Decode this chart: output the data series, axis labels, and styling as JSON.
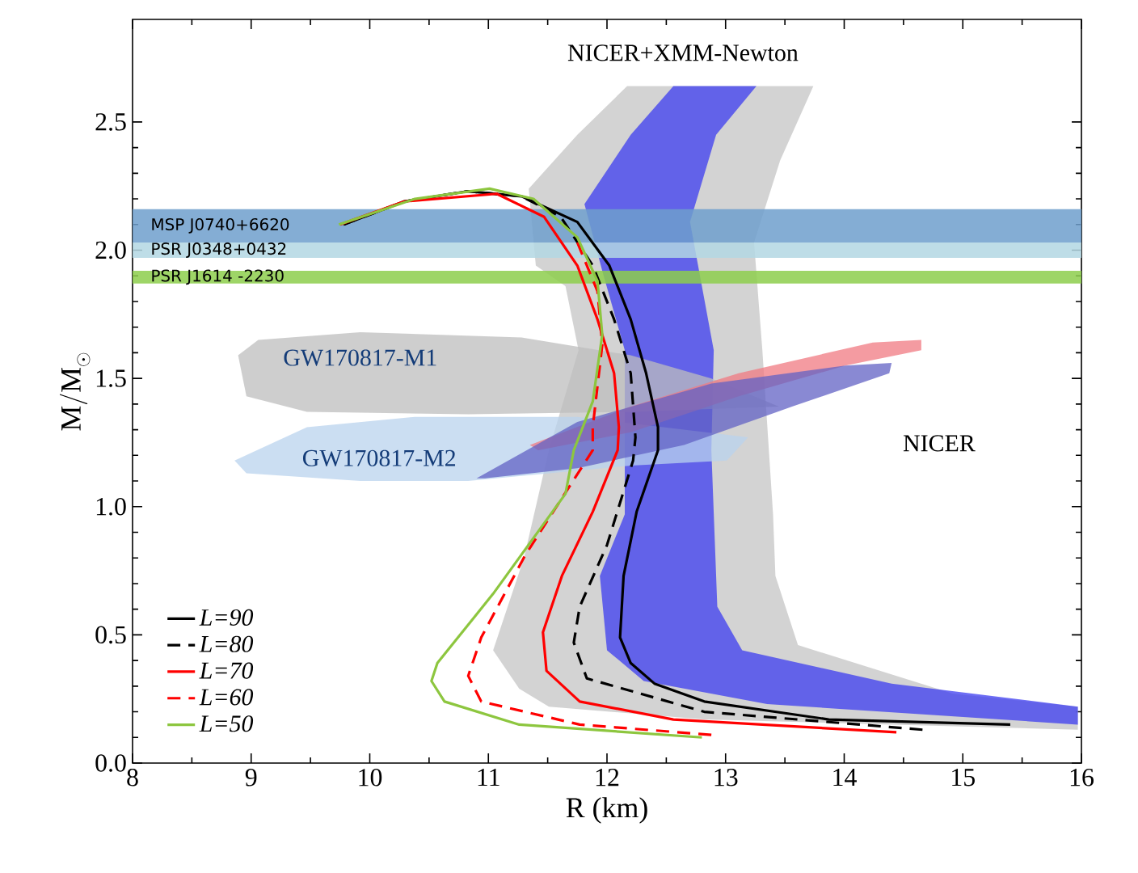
{
  "chart_data": {
    "type": "line",
    "xlabel": "R (km)",
    "ylabel": "\\mathrm{M/M}_{\\odot}",
    "xlim": [
      8,
      16
    ],
    "ylim": [
      0,
      2.9
    ],
    "xticks": [
      8,
      9,
      10,
      11,
      12,
      13,
      14,
      15,
      16
    ],
    "yticks": [
      {
        "value": 0,
        "label": "0.0"
      },
      {
        "value": 0.5,
        "label": "0.5"
      },
      {
        "value": 1,
        "label": "1.0"
      },
      {
        "value": 1.5,
        "label": "1.5"
      },
      {
        "value": 2,
        "label": "2.0"
      },
      {
        "value": 2.5,
        "label": "2.5"
      }
    ],
    "legend": "bottom left",
    "grid": false,
    "series": [
      {
        "type": "area",
        "color": "#c4c4c4",
        "x": [
          12.17,
          11.75,
          11.34,
          11.4,
          11.65,
          11.76,
          11.51,
          11.3,
          11.04,
          11.26,
          11.51,
          12.82,
          15.97,
          15.97,
          14.92,
          13.61,
          13.42,
          13.4,
          13.31,
          13.24,
          13.46,
          13.74
        ],
        "values": [
          2.64,
          2.45,
          2.24,
          1.94,
          1.86,
          1.61,
          1.22,
          0.8,
          0.44,
          0.29,
          0.22,
          0.17,
          0.13,
          0.22,
          0.27,
          0.46,
          0.73,
          0.97,
          1.61,
          2.03,
          2.35,
          2.64
        ]
      },
      {
        "type": "area",
        "color": "#3c3cf0",
        "x": [
          12.56,
          12.2,
          11.81,
          11.96,
          12.15,
          12.15,
          11.94,
          12.0,
          12.31,
          13.35,
          15.97,
          15.97,
          14.4,
          13.14,
          12.93,
          12.88,
          12.9,
          12.7,
          12.92,
          13.26
        ],
        "values": [
          2.64,
          2.45,
          2.18,
          1.92,
          1.61,
          0.97,
          0.73,
          0.44,
          0.32,
          0.23,
          0.15,
          0.22,
          0.31,
          0.44,
          0.61,
          1.22,
          1.61,
          2.11,
          2.45,
          2.64
        ]
      },
      {
        "type": "area",
        "color": "#bdbdbd",
        "x": [
          8.89,
          9.06,
          9.92,
          11.28,
          12.2,
          12.88,
          13.45,
          12.2,
          10.83,
          9.47,
          8.96
        ],
        "values": [
          1.59,
          1.65,
          1.68,
          1.66,
          1.59,
          1.5,
          1.39,
          1.37,
          1.36,
          1.37,
          1.43
        ]
      },
      {
        "type": "area",
        "color": "#b9d3ee",
        "x": [
          8.86,
          9.47,
          10.38,
          11.75,
          13.19,
          13.01,
          12.2,
          10.83,
          9.92,
          8.96
        ],
        "values": [
          1.18,
          1.31,
          1.35,
          1.35,
          1.27,
          1.18,
          1.16,
          1.1,
          1.1,
          1.13
        ]
      },
      {
        "type": "area",
        "color": "#f07a82",
        "x": [
          11.35,
          12.2,
          13.11,
          14.24,
          14.65,
          14.65,
          14.01,
          13.11,
          12.2,
          11.42
        ],
        "values": [
          1.24,
          1.39,
          1.52,
          1.64,
          1.65,
          1.61,
          1.55,
          1.43,
          1.29,
          1.22
        ]
      },
      {
        "type": "area",
        "color": "#6262c4",
        "x": [
          10.9,
          11.75,
          12.88,
          14.01,
          14.4,
          14.38,
          13.56,
          12.65,
          11.75,
          10.97
        ],
        "values": [
          1.11,
          1.33,
          1.48,
          1.55,
          1.56,
          1.52,
          1.39,
          1.24,
          1.15,
          1.11
        ]
      },
      {
        "name": "L=90",
        "color": "#000000",
        "line_style": "solid",
        "x": [
          15.4,
          13.87,
          12.82,
          12.4,
          12.2,
          12.11,
          12.14,
          12.25,
          12.43,
          12.43,
          12.33,
          12.2,
          12.02,
          11.75,
          11.28,
          10.83,
          10.29,
          9.78
        ],
        "values": [
          0.15,
          0.17,
          0.24,
          0.31,
          0.39,
          0.49,
          0.73,
          0.98,
          1.22,
          1.31,
          1.52,
          1.73,
          1.94,
          2.11,
          2.21,
          2.23,
          2.19,
          2.1
        ]
      },
      {
        "name": "L=80",
        "color": "#000000",
        "line_style": "dashed",
        "x": [
          14.66,
          12.82,
          11.83,
          11.72,
          11.77,
          12.0,
          12.22,
          12.24,
          12.2,
          12.06,
          11.88,
          11.61,
          11.28,
          10.83,
          10.29,
          9.78
        ],
        "values": [
          0.13,
          0.2,
          0.33,
          0.47,
          0.61,
          0.85,
          1.18,
          1.27,
          1.52,
          1.73,
          1.94,
          2.13,
          2.21,
          2.23,
          2.19,
          2.1
        ]
      },
      {
        "name": "L=70",
        "color": "#ff0000",
        "line_style": "solid",
        "x": [
          14.44,
          12.56,
          11.77,
          11.49,
          11.46,
          11.62,
          11.88,
          12.09,
          12.1,
          12.06,
          11.92,
          11.75,
          11.47,
          11.07,
          10.29,
          9.75
        ],
        "values": [
          0.12,
          0.17,
          0.24,
          0.36,
          0.51,
          0.73,
          0.98,
          1.22,
          1.31,
          1.52,
          1.73,
          1.94,
          2.13,
          2.22,
          2.19,
          2.1
        ]
      },
      {
        "name": "L=60",
        "color": "#ff0000",
        "line_style": "dashed",
        "x": [
          11.75,
          11.92,
          11.96,
          11.88,
          11.88,
          11.31,
          10.94,
          10.83,
          10.94,
          11.77,
          12.88
        ],
        "values": [
          2.03,
          1.84,
          1.63,
          1.31,
          1.22,
          0.81,
          0.49,
          0.34,
          0.24,
          0.15,
          0.11
        ]
      },
      {
        "name": "L=50",
        "color": "#8dc63f",
        "line_style": "solid",
        "x": [
          12.8,
          11.26,
          10.63,
          10.52,
          10.57,
          11.04,
          11.65,
          11.72,
          11.88,
          11.96,
          11.92,
          11.75,
          11.38,
          11.01,
          10.38,
          9.74
        ],
        "values": [
          0.1,
          0.15,
          0.24,
          0.32,
          0.39,
          0.66,
          1.05,
          1.22,
          1.41,
          1.67,
          1.88,
          2.05,
          2.2,
          2.24,
          2.2,
          2.1
        ]
      }
    ],
    "bands": [
      {
        "axis": "y",
        "from": 2.03,
        "to": 2.16,
        "label": "MSP  J0740+6620",
        "color": "#6f9fcc"
      },
      {
        "axis": "y",
        "from": 1.97,
        "to": 2.03,
        "label": "PSR  J0348+0432",
        "color": "#b3d7e3"
      },
      {
        "axis": "y",
        "from": 1.87,
        "to": 1.92,
        "label": "PSR  J1614 -2230",
        "color": "#8dce4c"
      }
    ],
    "annotations": [
      "GW170817-M1",
      "GW170817-M2",
      "NICER",
      "NICER+XMM-Newton"
    ]
  }
}
